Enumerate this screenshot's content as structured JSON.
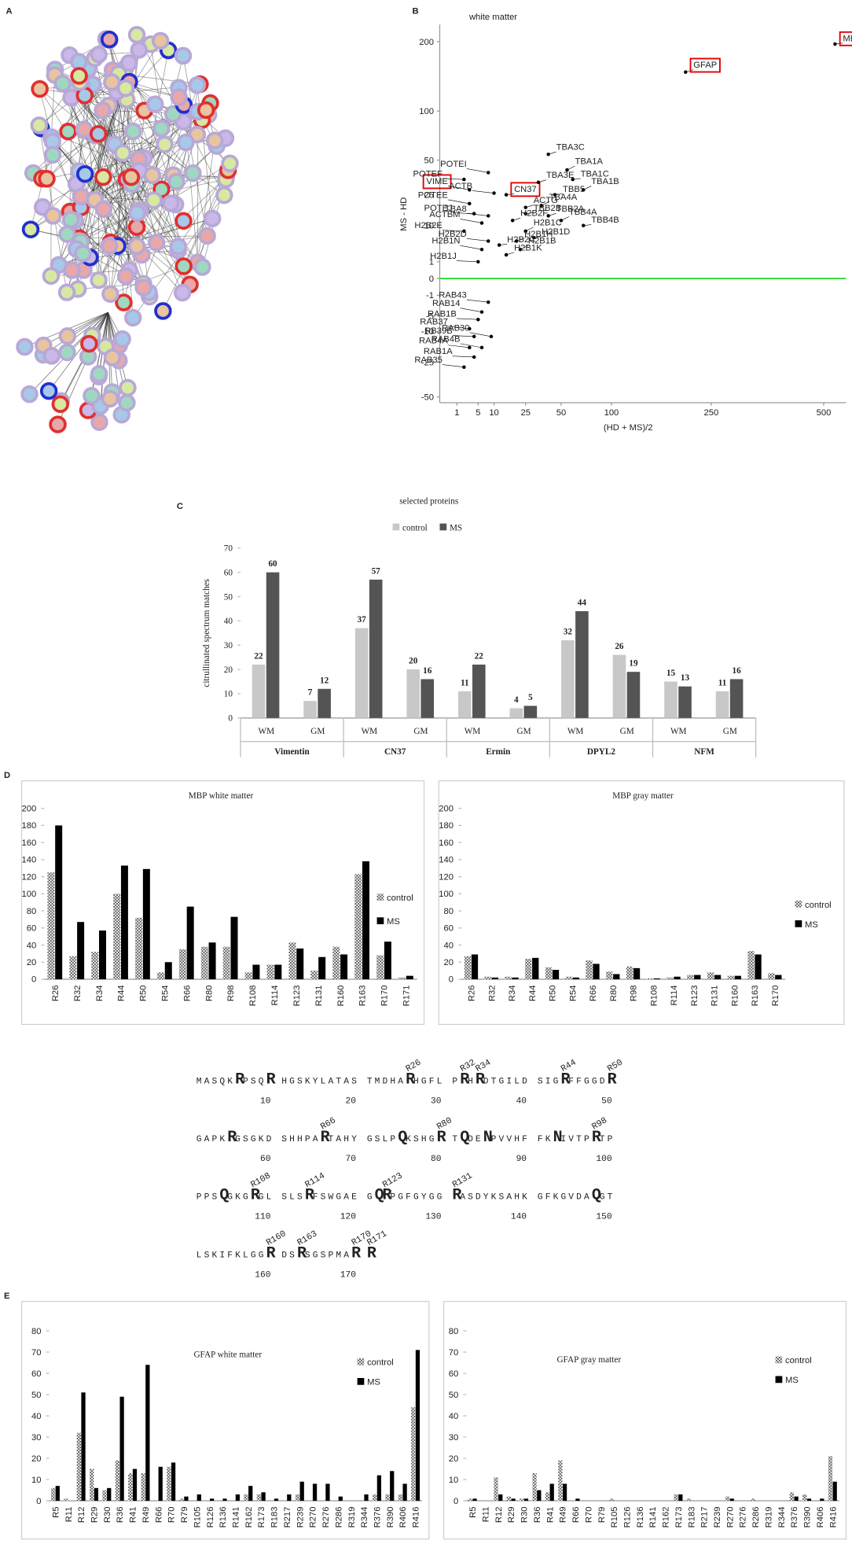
{
  "chart_data": [
    {
      "panel": "A",
      "type": "network"
    },
    {
      "panel": "B",
      "type": "scatter",
      "title": "white matter",
      "xlabel": "(HD + MS)/2",
      "ylabel": "MS - HD",
      "xscale": "sqrt",
      "yscale": "sqrt",
      "xlim": [
        0,
        560
      ],
      "ylim": [
        -55,
        230
      ],
      "xticks": [
        1,
        5,
        10,
        25,
        50,
        100,
        250,
        500
      ],
      "yticks": [
        200,
        100,
        50,
        25,
        10,
        1,
        0,
        -1,
        -5,
        -10,
        -25,
        -50
      ],
      "color": "#000000",
      "box_color": "#e00000",
      "boxed": [
        0,
        1,
        2,
        3
      ],
      "reference_line": {
        "y": 0,
        "color": "#33dd33"
      },
      "points": {
        "labels": [
          "MBP",
          "GFAP",
          "VIME",
          "CN37",
          "TBA3C",
          "TBA1A",
          "TBA1C",
          "TBA3E",
          "TBA1B",
          "TBB5",
          "ACTG",
          "TBA4A",
          "TBB2B",
          "TBB2A",
          "TBB4A",
          "TBB4B",
          "H2B2F",
          "H2B1C",
          "H2B1D",
          "H2B1H",
          "H2B1B",
          "H2B2C",
          "H2B1K",
          "POTEI",
          "POTEF",
          "ACTB",
          "POTEE",
          "POTEJ",
          "TBA8",
          "ACTBM",
          "H2B2E",
          "H2B2D",
          "H2B1N",
          "H2B1J",
          "RAB43",
          "RAB14",
          "RAB1B",
          "RAB37",
          "RAB30",
          "RB39B",
          "RAB4A",
          "RAB4B",
          "RAB1A",
          "RAB35"
        ],
        "x": [
          530,
          205,
          3,
          15,
          40,
          55,
          60,
          33,
          70,
          45,
          25,
          35,
          25,
          40,
          50,
          70,
          18,
          25,
          30,
          20,
          22,
          12,
          15,
          8,
          2,
          10,
          3,
          4,
          8,
          6,
          2,
          8,
          6,
          5,
          8,
          6,
          5,
          3,
          9,
          4,
          3,
          6,
          4,
          2
        ],
        "y": [
          196,
          152,
          28,
          25,
          55,
          42,
          35,
          33,
          28,
          25,
          18,
          19,
          15,
          14,
          12,
          10,
          12,
          8,
          6,
          5,
          3,
          4,
          2,
          40,
          35,
          26,
          20,
          15,
          14,
          11,
          8,
          5,
          3,
          1,
          -2,
          -4,
          -6,
          -9,
          -12,
          -12,
          -17,
          -17,
          -22,
          -28
        ]
      }
    },
    {
      "panel": "C",
      "type": "bar",
      "title": "selected proteins",
      "ylabel": "citrullinated spectrum matches",
      "categories": [
        "WM",
        "GM",
        "WM",
        "GM",
        "WM",
        "GM",
        "WM",
        "GM",
        "WM",
        "GM"
      ],
      "groups": [
        "Vimentin",
        "CN37",
        "Ermin",
        "DPYL2",
        "NFM"
      ],
      "series": [
        {
          "name": "control",
          "color": "#c8c8c8",
          "values": [
            22,
            7,
            37,
            20,
            11,
            4,
            32,
            26,
            15,
            11
          ]
        },
        {
          "name": "MS",
          "color": "#545454",
          "values": [
            60,
            12,
            57,
            16,
            22,
            5,
            44,
            19,
            13,
            16
          ]
        }
      ],
      "ylim": [
        0,
        70
      ],
      "yticks": [
        0,
        10,
        20,
        30,
        40,
        50,
        60,
        70
      ],
      "legend": "top",
      "value_labels_shown": true
    },
    {
      "panel": "D",
      "type": "bar",
      "title": "MBP white matter",
      "categories": [
        "R26",
        "R32",
        "R34",
        "R44",
        "R50",
        "R54",
        "R66",
        "R80",
        "R98",
        "R108",
        "R114",
        "R123",
        "R131",
        "R160",
        "R163",
        "R170",
        "R171"
      ],
      "series": [
        {
          "name": "control",
          "color": "#777777",
          "pattern": "checker",
          "values": [
            125,
            27,
            32,
            100,
            72,
            8,
            35,
            38,
            38,
            8,
            17,
            43,
            10,
            38,
            123,
            28,
            2
          ]
        },
        {
          "name": "MS",
          "color": "#000000",
          "values": [
            180,
            67,
            57,
            133,
            129,
            20,
            85,
            43,
            73,
            17,
            17,
            36,
            26,
            29,
            138,
            44,
            4
          ]
        }
      ],
      "ylim": [
        0,
        200
      ],
      "yticks": [
        0,
        20,
        40,
        60,
        80,
        100,
        120,
        140,
        160,
        180,
        200
      ],
      "legend": "right"
    },
    {
      "type": "bar",
      "title": "MBP gray matter",
      "categories": [
        "R26",
        "R32",
        "R34",
        "R44",
        "R50",
        "R54",
        "R66",
        "R80",
        "R98",
        "R108",
        "R114",
        "R123",
        "R131",
        "R160",
        "R163",
        "R170"
      ],
      "series": [
        {
          "name": "control",
          "color": "#777777",
          "pattern": "checker",
          "values": [
            27,
            3,
            3,
            24,
            14,
            3,
            22,
            9,
            15,
            1,
            2,
            5,
            8,
            4,
            33,
            7
          ]
        },
        {
          "name": "MS",
          "color": "#000000",
          "values": [
            29,
            2,
            2,
            25,
            11,
            2,
            18,
            6,
            13,
            1,
            3,
            5,
            5,
            4,
            29,
            5
          ]
        }
      ],
      "ylim": [
        0,
        200
      ],
      "yticks": [
        0,
        20,
        40,
        60,
        80,
        100,
        120,
        140,
        160,
        180,
        200
      ],
      "legend": "right"
    },
    {
      "panel": "E",
      "type": "bar",
      "title": "GFAP white matter",
      "categories": [
        "R5",
        "R11",
        "R12",
        "R29",
        "R30",
        "R36",
        "R41",
        "R49",
        "R66",
        "R70",
        "R79",
        "R105",
        "R126",
        "R136",
        "R141",
        "R162",
        "R173",
        "R183",
        "R217",
        "R239",
        "R270",
        "R276",
        "R286",
        "R319",
        "R344",
        "R376",
        "R390",
        "R406",
        "R416"
      ],
      "series": [
        {
          "name": "control",
          "color": "#777777",
          "pattern": "checker",
          "values": [
            6,
            1,
            32,
            15,
            5,
            19,
            13,
            13,
            0,
            16,
            1,
            0,
            0,
            0,
            0,
            3,
            3,
            0,
            0,
            3,
            0,
            0,
            0,
            0,
            0,
            3,
            3,
            3,
            44
          ]
        },
        {
          "name": "MS",
          "color": "#000000",
          "values": [
            7,
            0,
            51,
            6,
            6,
            49,
            15,
            64,
            16,
            18,
            2,
            3,
            1,
            1,
            3,
            7,
            4,
            1,
            3,
            9,
            8,
            8,
            2,
            0,
            3,
            12,
            14,
            8,
            71
          ]
        }
      ],
      "ylim": [
        0,
        80
      ],
      "yticks": [
        0,
        10,
        20,
        30,
        40,
        50,
        60,
        70,
        80
      ],
      "legend": "upper right"
    },
    {
      "type": "bar",
      "title": "GFAP gray matter",
      "categories": [
        "R5",
        "R11",
        "R12",
        "R29",
        "R30",
        "R36",
        "R41",
        "R49",
        "R66",
        "R70",
        "R79",
        "R105",
        "R126",
        "R136",
        "R141",
        "R162",
        "R173",
        "R183",
        "R217",
        "R239",
        "R270",
        "R276",
        "R286",
        "R319",
        "R344",
        "R376",
        "R390",
        "R406",
        "R416"
      ],
      "series": [
        {
          "name": "control",
          "color": "#777777",
          "pattern": "checker",
          "values": [
            1,
            0,
            11,
            2,
            1,
            13,
            4,
            19,
            0,
            0,
            0,
            1,
            0,
            0,
            0,
            0,
            3,
            1,
            0,
            0,
            2,
            0,
            1,
            0,
            0,
            4,
            3,
            0,
            21
          ]
        },
        {
          "name": "MS",
          "color": "#000000",
          "values": [
            1,
            0,
            3,
            1,
            1,
            5,
            8,
            8,
            1,
            0,
            0,
            0,
            0,
            0,
            0,
            0,
            3,
            0,
            0,
            0,
            1,
            0,
            0,
            0,
            0,
            2,
            1,
            1,
            9
          ]
        }
      ],
      "ylim": [
        0,
        80
      ],
      "yticks": [
        0,
        10,
        20,
        30,
        40,
        50,
        60,
        70,
        80
      ],
      "legend": "upper right"
    }
  ],
  "sequence": {
    "lines": [
      {
        "residues": "MASQKRPSQR HGSKYLATAS TMDHARHGFL PRHRDTGILD SIGRFFGGDR",
        "numbers": [
          10,
          20,
          30,
          40,
          50
        ]
      },
      {
        "residues": "GAPKRGSGKD SHHPARTAHY GSLPQKSHGR TQDENPVVHF FKNIVTPRTP",
        "numbers": [
          60,
          70,
          80,
          90,
          100
        ]
      },
      {
        "residues": "PPSQGKGRGL SLSRFSWGAE GQRPGFGYGG RASDYKSAHK GFKGVDAQGT",
        "numbers": [
          110,
          120,
          130,
          140,
          150
        ]
      },
      {
        "residues": "LSKIFKLGGR DSRSGSPMAR R",
        "numbers": [
          160,
          170
        ]
      }
    ],
    "sites": [
      "R26",
      "R32",
      "R34",
      "R44",
      "R50",
      "R66",
      "R80",
      "R98",
      "R108",
      "R114",
      "R123",
      "R131",
      "R160",
      "R163",
      "R170",
      "R171"
    ],
    "emphasized": [
      6,
      10,
      26,
      32,
      34,
      44,
      50,
      55,
      66,
      75,
      80,
      82,
      85,
      93,
      98,
      104,
      108,
      114,
      122,
      123,
      131,
      148,
      160,
      163,
      170,
      171
    ]
  }
}
